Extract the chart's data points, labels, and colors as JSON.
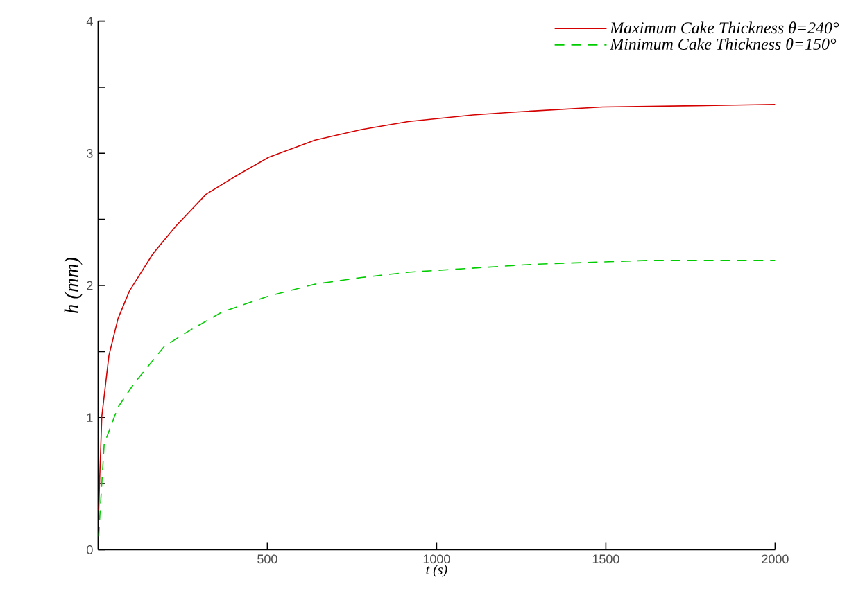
{
  "chart_data": {
    "type": "line",
    "xlabel": "t (s)",
    "ylabel": "h (mm)",
    "xlim": [
      0,
      2000
    ],
    "ylim": [
      0,
      4
    ],
    "xticks": [
      500,
      1000,
      1500,
      2000
    ],
    "yticks": [
      0,
      {
        "value": 0.5,
        "label": null
      },
      1,
      {
        "value": 1.5,
        "label": null
      },
      2,
      {
        "value": 2.5,
        "label": null
      },
      3,
      {
        "value": 3.5,
        "label": null
      },
      4
    ],
    "legend": "top right",
    "grid": false,
    "series": [
      {
        "name": "Maximum Cake Thickness  θ=240°",
        "color": "#d40000",
        "line_style": "solid",
        "x": [
          2,
          4,
          11,
          32,
          59,
          93,
          162,
          230,
          319,
          408,
          504,
          641,
          778,
          916,
          1107,
          1217,
          1491,
          1765,
          2000
        ],
        "values": [
          0.3,
          0.49,
          1.01,
          1.47,
          1.75,
          1.96,
          2.24,
          2.45,
          2.69,
          2.83,
          2.97,
          3.1,
          3.18,
          3.24,
          3.29,
          3.31,
          3.35,
          3.36,
          3.37
        ]
      },
      {
        "name": "Minimum Cake Thickness  θ=150°",
        "color": "#00cc00",
        "line_style": "dashed",
        "x": [
          2,
          4,
          18,
          59,
          107,
          196,
          271,
          367,
          504,
          641,
          778,
          916,
          1285,
          1628,
          2000
        ],
        "values": [
          0.1,
          0.21,
          0.8,
          1.08,
          1.26,
          1.54,
          1.66,
          1.8,
          1.92,
          2.01,
          2.06,
          2.1,
          2.16,
          2.19,
          2.19
        ]
      }
    ]
  }
}
